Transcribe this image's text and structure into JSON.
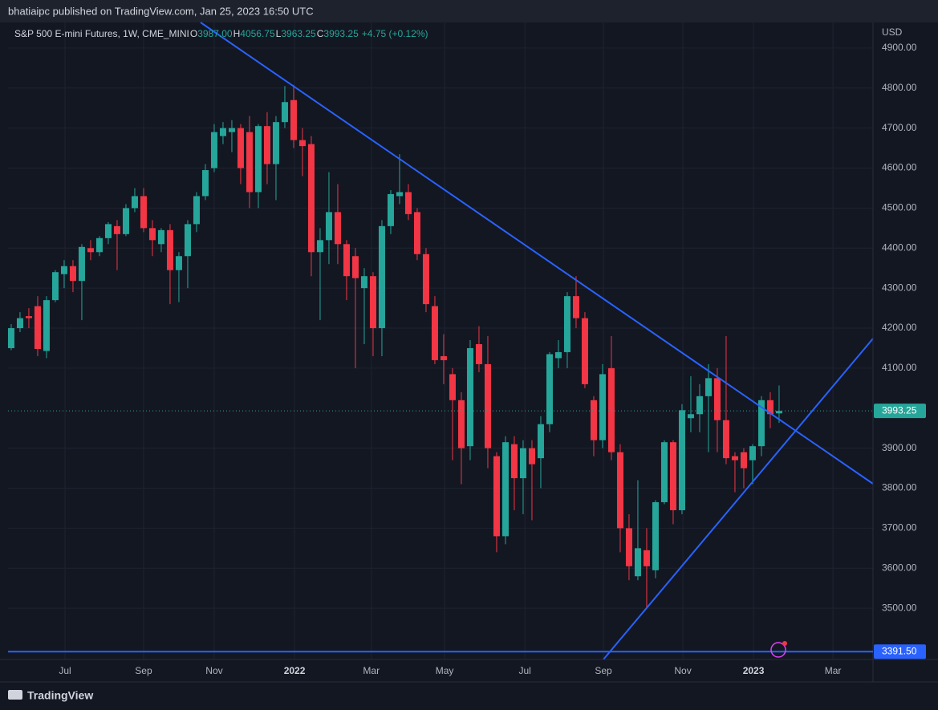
{
  "header": {
    "title": "bhatiaipc published on TradingView.com, Jan 25, 2023 16:50 UTC"
  },
  "footer": {
    "brand": "TradingView"
  },
  "chart_data": {
    "type": "candlestick",
    "symbol": "S&P 500 E-mini Futures, 1W, CME_MINI",
    "legend_values": [
      {
        "label": "O",
        "value": "3987.00"
      },
      {
        "label": "H",
        "value": "4056.75"
      },
      {
        "label": "L",
        "value": "3963.25"
      },
      {
        "label": "C",
        "value": "3993.25"
      }
    ],
    "change": "+4.75 (+0.12%)",
    "y_axis_unit": "USD",
    "up_color": "#26a69a",
    "down_color": "#f23645",
    "open": [
      4150,
      4200,
      4230,
      4255,
      4143,
      4270,
      4335,
      4355,
      4318,
      4400,
      4390,
      4425,
      4455,
      4435,
      4500,
      4530,
      4450,
      4410,
      4445,
      4345,
      4380,
      4460,
      4530,
      4600,
      4680,
      4690,
      4700,
      4690,
      4540,
      4705,
      4610,
      4715,
      4770,
      4670,
      4660,
      4390,
      4420,
      4490,
      4410,
      4380,
      4300,
      4330,
      4200,
      4455,
      4530,
      4540,
      4490,
      4385,
      4255,
      4130,
      4085,
      4020,
      3905,
      4160,
      4110,
      3880,
      3680,
      3910,
      3825,
      3900,
      3875,
      3960,
      4125,
      4140,
      4280,
      4225,
      4020,
      3920,
      4100,
      3890,
      3700,
      3580,
      3645,
      3595,
      3765,
      3915,
      3745,
      3975,
      3985,
      4030,
      4075,
      3970,
      3880,
      3890,
      3870,
      3905,
      4020,
      3987
    ],
    "high": [
      4210,
      4240,
      4250,
      4280,
      4280,
      4345,
      4370,
      4370,
      4410,
      4420,
      4430,
      4465,
      4470,
      4510,
      4550,
      4550,
      4470,
      4450,
      4460,
      4390,
      4470,
      4540,
      4610,
      4710,
      4715,
      4720,
      4710,
      4730,
      4710,
      4740,
      4730,
      4805,
      4808,
      4700,
      4680,
      4450,
      4590,
      4560,
      4420,
      4400,
      4350,
      4340,
      4470,
      4545,
      4635,
      4560,
      4500,
      4400,
      4280,
      4185,
      4100,
      4040,
      4170,
      4205,
      4180,
      3890,
      3930,
      3930,
      3920,
      3920,
      3980,
      4140,
      4170,
      4290,
      4330,
      4240,
      4030,
      4110,
      4180,
      3910,
      3735,
      3820,
      3700,
      3770,
      3920,
      3920,
      4010,
      4080,
      4060,
      4110,
      4100,
      4180,
      3890,
      3900,
      3910,
      4030,
      4040,
      4056.75
    ],
    "low": [
      4145,
      4190,
      4200,
      4130,
      4125,
      4265,
      4300,
      4290,
      4220,
      4370,
      4380,
      4410,
      4345,
      4430,
      4490,
      4440,
      4380,
      4390,
      4260,
      4265,
      4300,
      4440,
      4520,
      4590,
      4660,
      4640,
      4560,
      4500,
      4500,
      4560,
      4520,
      4700,
      4650,
      4580,
      4330,
      4220,
      4360,
      4360,
      4270,
      4100,
      4160,
      4130,
      4130,
      4435,
      4510,
      4470,
      4370,
      4240,
      4110,
      4060,
      3870,
      3810,
      3870,
      4090,
      3850,
      3640,
      3660,
      3745,
      3735,
      3720,
      3800,
      3940,
      4100,
      4100,
      4200,
      4050,
      3880,
      3900,
      3870,
      3640,
      3570,
      3570,
      3500,
      3575,
      3760,
      3710,
      3735,
      3940,
      3940,
      3890,
      3890,
      3860,
      3790,
      3800,
      3810,
      3880,
      3950,
      3963.25
    ],
    "close": [
      4200,
      4225,
      4225,
      4148,
      4270,
      4340,
      4355,
      4318,
      4403,
      4390,
      4425,
      4460,
      4435,
      4500,
      4530,
      4450,
      4420,
      4445,
      4345,
      4380,
      4460,
      4530,
      4595,
      4690,
      4700,
      4700,
      4600,
      4540,
      4705,
      4610,
      4715,
      4765,
      4670,
      4655,
      4390,
      4420,
      4490,
      4410,
      4330,
      4325,
      4330,
      4200,
      4455,
      4535,
      4540,
      4485,
      4385,
      4260,
      4120,
      4120,
      4020,
      3900,
      4150,
      4110,
      3900,
      3680,
      3915,
      3825,
      3900,
      3860,
      3960,
      4135,
      4140,
      4280,
      4225,
      4060,
      3920,
      4085,
      3890,
      3700,
      3605,
      3650,
      3605,
      3765,
      3915,
      3745,
      3995,
      3985,
      4030,
      4075,
      3970,
      3875,
      3870,
      3850,
      3905,
      4020,
      3985,
      3993.25
    ],
    "xlim": [
      -0.36,
      97.64
    ],
    "xticks": [
      {
        "value": 6.1,
        "label": "Jul"
      },
      {
        "value": 15,
        "label": "Sep"
      },
      {
        "value": 23,
        "label": "Nov"
      },
      {
        "value": 32.1,
        "label": "2022"
      },
      {
        "value": 40.8,
        "label": "Mar"
      },
      {
        "value": 49.1,
        "label": "May"
      },
      {
        "value": 58.2,
        "label": "Jul"
      },
      {
        "value": 67.1,
        "label": "Sep"
      },
      {
        "value": 76.1,
        "label": "Nov"
      },
      {
        "value": 84.1,
        "label": "2023"
      },
      {
        "value": 93.1,
        "label": "Mar"
      }
    ],
    "ylim": [
      3372,
      4964
    ],
    "yticks": [
      {
        "value": 3500,
        "label": "3500.00"
      },
      {
        "value": 3600,
        "label": "3600.00"
      },
      {
        "value": 3700,
        "label": "3700.00"
      },
      {
        "value": 3800,
        "label": "3800.00"
      },
      {
        "value": 3900,
        "label": "3900.00"
      },
      {
        "value": 4100,
        "label": "4100.00"
      },
      {
        "value": 4200,
        "label": "4200.00"
      },
      {
        "value": 4300,
        "label": "4300.00"
      },
      {
        "value": 4400,
        "label": "4400.00"
      },
      {
        "value": 4500,
        "label": "4500.00"
      },
      {
        "value": 4600,
        "label": "4600.00"
      },
      {
        "value": 4700,
        "label": "4700.00"
      },
      {
        "value": 4800,
        "label": "4800.00"
      },
      {
        "value": 4900,
        "label": "4900.00"
      }
    ],
    "grid": true,
    "price_lines": [
      {
        "value": 3993.25,
        "label": "3993.25",
        "color": "#26a69a",
        "style": "dotted"
      },
      {
        "value": 3391.5,
        "label": "3391.50",
        "color": "#2962ff",
        "style": "solid"
      }
    ]
  }
}
